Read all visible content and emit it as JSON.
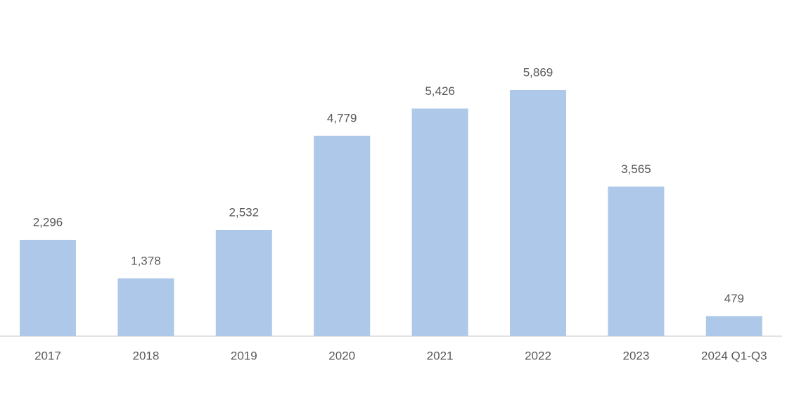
{
  "chart_data": {
    "type": "bar",
    "categories": [
      "2017",
      "2018",
      "2019",
      "2020",
      "2021",
      "2022",
      "2023",
      "2024 Q1-Q3"
    ],
    "values": [
      2296,
      1378,
      2532,
      4779,
      5426,
      5869,
      3565,
      479
    ],
    "value_labels": [
      "2,296",
      "1,378",
      "2,532",
      "4,779",
      "5,426",
      "5,869",
      "3,565",
      "479"
    ],
    "color": "#aec8e9"
  }
}
